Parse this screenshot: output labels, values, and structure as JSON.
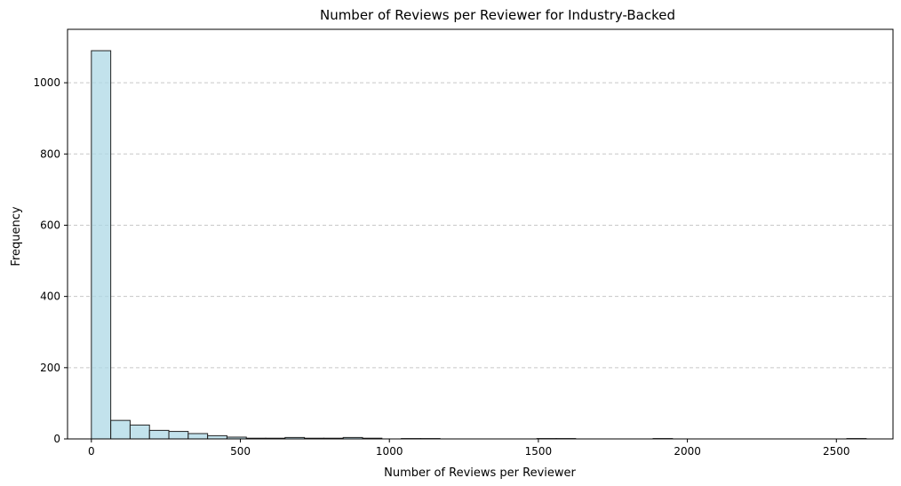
{
  "chart_data": {
    "type": "bar",
    "title": "Number of Reviews per Reviewer for Industry-Backed",
    "xlabel": "Number of Reviews per Reviewer",
    "ylabel": "Frequency",
    "xlim": [
      -80,
      2690
    ],
    "ylim": [
      0,
      1150
    ],
    "bin_width": 65,
    "xticks": [
      0,
      500,
      1000,
      1500,
      2000,
      2500
    ],
    "yticks": [
      0,
      200,
      400,
      600,
      800,
      1000
    ],
    "grid": "y-dashed",
    "colors": {
      "bar_fill": "#add8e6",
      "bar_stroke": "#222222",
      "grid": "#c8c8c8"
    },
    "bins": [
      {
        "x": 0,
        "value": 1090
      },
      {
        "x": 65,
        "value": 52
      },
      {
        "x": 130,
        "value": 39
      },
      {
        "x": 195,
        "value": 24
      },
      {
        "x": 260,
        "value": 21
      },
      {
        "x": 325,
        "value": 15
      },
      {
        "x": 390,
        "value": 9
      },
      {
        "x": 455,
        "value": 5
      },
      {
        "x": 520,
        "value": 2
      },
      {
        "x": 585,
        "value": 2
      },
      {
        "x": 650,
        "value": 4
      },
      {
        "x": 715,
        "value": 2
      },
      {
        "x": 780,
        "value": 2
      },
      {
        "x": 845,
        "value": 4
      },
      {
        "x": 910,
        "value": 2
      },
      {
        "x": 1040,
        "value": 1
      },
      {
        "x": 1105,
        "value": 1
      },
      {
        "x": 1495,
        "value": 1
      },
      {
        "x": 1560,
        "value": 1
      },
      {
        "x": 1885,
        "value": 1
      },
      {
        "x": 2535,
        "value": 1
      }
    ]
  }
}
